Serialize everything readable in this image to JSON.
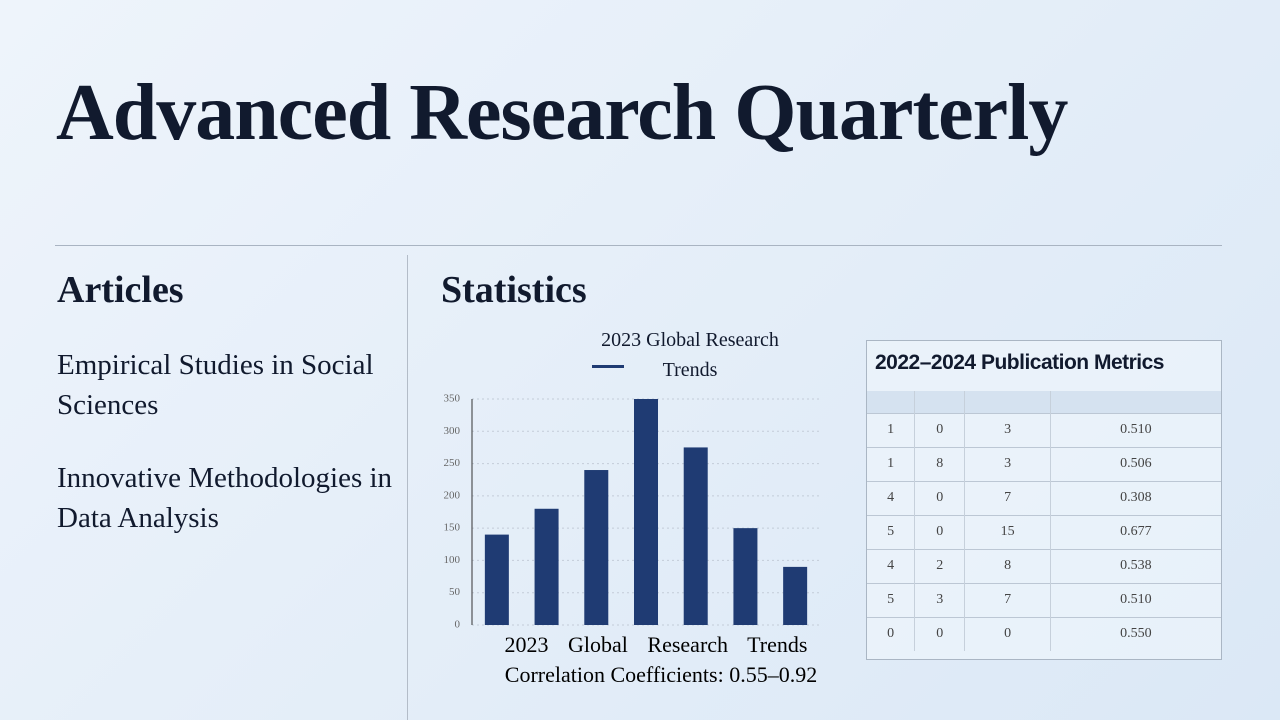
{
  "header": {
    "title": "Advanced Research Quarterly"
  },
  "articles": {
    "heading": "Articles",
    "items": [
      "Empirical Studies in Social Sciences",
      "Innovative Methodologies in Data Analysis"
    ]
  },
  "statistics": {
    "heading": "Statistics"
  },
  "chart_data": {
    "type": "bar",
    "xlabel": "2023 Global Research Trends",
    "caption": "Correlation Coefficients: 0.55–0.92",
    "series": [
      {
        "name": "2023 Global Research Trends",
        "color": "#1f3b73",
        "values": [
          140,
          180,
          240,
          350,
          275,
          150,
          90
        ]
      }
    ],
    "ylim": [
      0,
      350
    ],
    "yticks": [
      0,
      50,
      100,
      150,
      200,
      250,
      300,
      350
    ],
    "grid": true
  },
  "table": {
    "title": "2022–2024 Publication Metrics",
    "rows": [
      [
        "1",
        "0",
        "3",
        "0.510"
      ],
      [
        "1",
        "8",
        "3",
        "0.506"
      ],
      [
        "4",
        "0",
        "7",
        "0.308"
      ],
      [
        "5",
        "0",
        "15",
        "0.677"
      ],
      [
        "4",
        "2",
        "8",
        "0.538"
      ],
      [
        "5",
        "3",
        "7",
        "0.510"
      ],
      [
        "0",
        "0",
        "0",
        "0.550"
      ]
    ]
  }
}
